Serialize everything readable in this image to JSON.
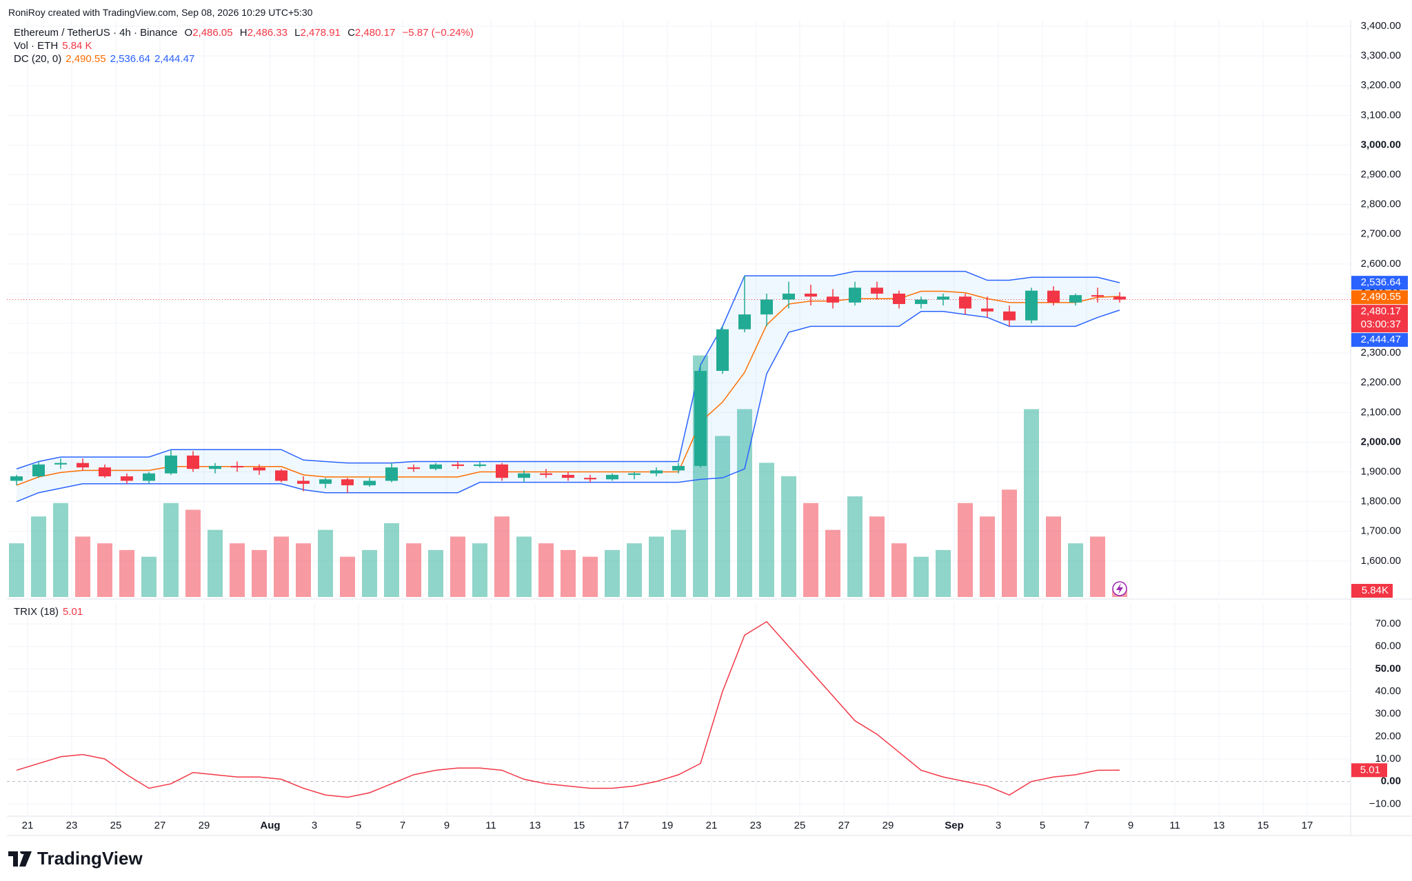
{
  "header": {
    "credit": "RoniRoy created with TradingView.com, Sep 08, 2026 10:29 UTC+5:30",
    "brand": "TradingView"
  },
  "chart_data": {
    "type": "candlestick",
    "legend": {
      "symbol": "Ethereum / TetherUS · 4h · Binance",
      "ohlc": [
        {
          "key": "O",
          "value": {
            "value": 2486.05,
            "label": "2,486.05"
          }
        },
        {
          "key": "H",
          "value": {
            "value": 2486.33,
            "label": "2,486.33"
          }
        },
        {
          "key": "L",
          "value": {
            "value": 2478.91,
            "label": "2,478.91"
          }
        },
        {
          "key": "C",
          "value": {
            "value": 2480.17,
            "label": "2,480.17"
          }
        }
      ],
      "change": "−5.87 (−0.24%)"
    },
    "categories": [
      "Jul 20",
      "Jul 21",
      "Jul 22",
      "Jul 23",
      "Jul 24",
      "Jul 25",
      "Jul 26",
      "Jul 27",
      "Jul 28",
      "Jul 29",
      "Jul 30",
      "Jul 31",
      "Aug 1",
      "Aug 2",
      "Aug 3",
      "Aug 4",
      "Aug 5",
      "Aug 6",
      "Aug 7",
      "Aug 8",
      "Aug 9",
      "Aug 10",
      "Aug 11",
      "Aug 12",
      "Aug 13",
      "Aug 14",
      "Aug 15",
      "Aug 16",
      "Aug 17",
      "Aug 18",
      "Aug 19",
      "Aug 20",
      "Aug 21",
      "Aug 22",
      "Aug 23",
      "Aug 24",
      "Aug 25",
      "Aug 26",
      "Aug 27",
      "Aug 28",
      "Aug 29",
      "Aug 30",
      "Aug 31",
      "Sep 1",
      "Sep 2",
      "Sep 3",
      "Sep 4",
      "Sep 5",
      "Sep 6",
      "Sep 7",
      "Sep 8"
    ],
    "open": [
      1870,
      1885,
      1925,
      1930,
      1915,
      1885,
      1870,
      1895,
      1955,
      1910,
      1920,
      1915,
      1905,
      1870,
      1860,
      1875,
      1855,
      1870,
      1915,
      1910,
      1925,
      1920,
      1925,
      1880,
      1895,
      1890,
      1880,
      1875,
      1890,
      1895,
      1905,
      1920,
      2240,
      2380,
      2430,
      2480,
      2500,
      2490,
      2470,
      2520,
      2500,
      2465,
      2480,
      2490,
      2450,
      2440,
      2410,
      2510,
      2470,
      2495,
      2490
    ],
    "high": [
      1890,
      1935,
      1945,
      1945,
      1925,
      1895,
      1900,
      1975,
      1970,
      1930,
      1935,
      1925,
      1910,
      1885,
      1880,
      1880,
      1880,
      1930,
      1925,
      1930,
      1935,
      1935,
      1930,
      1905,
      1910,
      1900,
      1890,
      1895,
      1900,
      1915,
      1930,
      2260,
      2390,
      2560,
      2500,
      2540,
      2530,
      2515,
      2540,
      2540,
      2510,
      2490,
      2500,
      2500,
      2490,
      2460,
      2520,
      2525,
      2500,
      2520,
      2505
    ],
    "low": [
      1855,
      1880,
      1910,
      1905,
      1880,
      1860,
      1860,
      1890,
      1900,
      1895,
      1900,
      1890,
      1865,
      1835,
      1845,
      1830,
      1850,
      1865,
      1900,
      1905,
      1910,
      1915,
      1870,
      1865,
      1880,
      1870,
      1865,
      1870,
      1875,
      1885,
      1895,
      1915,
      2230,
      2370,
      2390,
      2450,
      2460,
      2450,
      2460,
      2480,
      2450,
      2450,
      2460,
      2430,
      2420,
      2390,
      2400,
      2460,
      2460,
      2470,
      2470
    ],
    "close": [
      1885,
      1925,
      1930,
      1915,
      1885,
      1870,
      1895,
      1955,
      1910,
      1920,
      1915,
      1905,
      1870,
      1860,
      1875,
      1855,
      1870,
      1915,
      1910,
      1925,
      1920,
      1925,
      1880,
      1895,
      1890,
      1880,
      1875,
      1890,
      1895,
      1905,
      1920,
      2240,
      2380,
      2430,
      2480,
      2500,
      2490,
      2470,
      2520,
      2500,
      2465,
      2480,
      2490,
      2450,
      2440,
      2410,
      2510,
      2470,
      2495,
      2490,
      2480.17
    ],
    "up_color": "#22ab94",
    "down_color": "#f23645",
    "ylim": [
      1479,
      3421
    ],
    "yticks": [
      {
        "value": 1600,
        "label": "1,600.00"
      },
      {
        "value": 1700,
        "label": "1,700.00"
      },
      {
        "value": 1800,
        "label": "1,800.00"
      },
      {
        "value": 1900,
        "label": "1,900.00"
      },
      {
        "value": 2000,
        "label": "2,000.00"
      },
      {
        "value": 2100,
        "label": "2,100.00"
      },
      {
        "value": 2200,
        "label": "2,200.00"
      },
      {
        "value": 2300,
        "label": "2,300.00"
      },
      {
        "value": 2400,
        "label": "2,400.00"
      },
      {
        "value": 2500,
        "label": "2,500.00"
      },
      {
        "value": 2600,
        "label": "2,600.00"
      },
      {
        "value": 2700,
        "label": "2,700.00"
      },
      {
        "value": 2800,
        "label": "2,800.00"
      },
      {
        "value": 2900,
        "label": "2,900.00"
      },
      {
        "value": 3000,
        "label": "3,000.00"
      },
      {
        "value": 3100,
        "label": "3,100.00"
      },
      {
        "value": 3200,
        "label": "3,200.00"
      },
      {
        "value": 3300,
        "label": "3,300.00"
      },
      {
        "value": 3400,
        "label": "3,400.00"
      }
    ],
    "xticks": [
      {
        "value": 1,
        "label": "21"
      },
      {
        "value": 3,
        "label": "23"
      },
      {
        "value": 5,
        "label": "25"
      },
      {
        "value": 7,
        "label": "27"
      },
      {
        "value": 9,
        "label": "29"
      },
      {
        "value": 12,
        "label": "Aug"
      },
      {
        "value": 14,
        "label": "3"
      },
      {
        "value": 16,
        "label": "5"
      },
      {
        "value": 18,
        "label": "7"
      },
      {
        "value": 20,
        "label": "9"
      },
      {
        "value": 22,
        "label": "11"
      },
      {
        "value": 24,
        "label": "13"
      },
      {
        "value": 26,
        "label": "15"
      },
      {
        "value": 28,
        "label": "17"
      },
      {
        "value": 30,
        "label": "19"
      },
      {
        "value": 32,
        "label": "21"
      },
      {
        "value": 34,
        "label": "23"
      },
      {
        "value": 36,
        "label": "25"
      },
      {
        "value": 38,
        "label": "27"
      },
      {
        "value": 40,
        "label": "29"
      },
      {
        "value": 43,
        "label": "Sep"
      },
      {
        "value": 45,
        "label": "3"
      },
      {
        "value": 47,
        "label": "5"
      },
      {
        "value": 49,
        "label": "7"
      },
      {
        "value": 51,
        "label": "9"
      },
      {
        "value": 53,
        "label": "11"
      },
      {
        "value": 55,
        "label": "13"
      },
      {
        "value": 57,
        "label": "15"
      },
      {
        "value": 59,
        "label": "17"
      }
    ],
    "grid": true,
    "current_price": {
      "value": 2480.17,
      "label": "2,480.17",
      "countdown": "03:00:37",
      "color": "#f23645"
    },
    "volume": {
      "name": "Vol · ETH",
      "vlim": [
        0,
        430
      ],
      "values": [
        40,
        60,
        70,
        45,
        40,
        35,
        30,
        70,
        65,
        50,
        40,
        35,
        45,
        40,
        50,
        30,
        35,
        55,
        40,
        35,
        45,
        40,
        60,
        45,
        40,
        35,
        30,
        35,
        40,
        45,
        50,
        180,
        120,
        140,
        100,
        90,
        70,
        50,
        75,
        60,
        40,
        30,
        35,
        70,
        60,
        80,
        140,
        60,
        40,
        45,
        5.84
      ],
      "legend_value": {
        "value": 5.84,
        "label": "5.84 K"
      },
      "axis_label": {
        "value": 5.84,
        "label": "5.84K"
      },
      "color": "#f23645"
    },
    "dc": {
      "name": "DC (20, 0)",
      "upper_color": "#2962ff",
      "basis_color": "#ff6d00",
      "upper": [
        1910,
        1935,
        1950,
        1950,
        1950,
        1950,
        1950,
        1975,
        1975,
        1975,
        1975,
        1975,
        1975,
        1940,
        1935,
        1930,
        1930,
        1930,
        1935,
        1935,
        1935,
        1935,
        1935,
        1935,
        1935,
        1935,
        1935,
        1935,
        1935,
        1935,
        1935,
        2260,
        2390,
        2560,
        2560,
        2560,
        2560,
        2560,
        2575,
        2575,
        2575,
        2575,
        2575,
        2575,
        2545,
        2545,
        2555,
        2555,
        2555,
        2555,
        2536.64
      ],
      "basis": [
        1855,
        1883,
        1898,
        1905,
        1905,
        1905,
        1905,
        1918,
        1918,
        1918,
        1918,
        1918,
        1918,
        1890,
        1883,
        1883,
        1883,
        1883,
        1883,
        1883,
        1883,
        1900,
        1900,
        1900,
        1900,
        1900,
        1900,
        1900,
        1900,
        1900,
        1900,
        2068,
        2135,
        2235,
        2395,
        2465,
        2475,
        2475,
        2483,
        2483,
        2483,
        2508,
        2508,
        2503,
        2483,
        2470,
        2470,
        2470,
        2470,
        2488,
        2490.55
      ],
      "lower": [
        1800,
        1830,
        1845,
        1860,
        1860,
        1860,
        1860,
        1860,
        1860,
        1860,
        1860,
        1860,
        1860,
        1840,
        1830,
        1830,
        1830,
        1830,
        1830,
        1830,
        1830,
        1865,
        1865,
        1865,
        1865,
        1865,
        1865,
        1865,
        1865,
        1865,
        1865,
        1875,
        1880,
        1910,
        2230,
        2370,
        2390,
        2390,
        2390,
        2390,
        2390,
        2440,
        2440,
        2430,
        2420,
        2390,
        2390,
        2390,
        2390,
        2420,
        2444.47
      ],
      "last_labels": [
        {
          "value": 2490.55,
          "label": "2,490.55",
          "color": "#ff6d00"
        },
        {
          "value": 2536.64,
          "label": "2,536.64",
          "color": "#2962ff"
        },
        {
          "value": 2444.47,
          "label": "2,444.47",
          "color": "#2962ff"
        }
      ]
    },
    "trix": {
      "name": "TRIX (18)",
      "color": "#f23645",
      "tlim": [
        -14.8,
        79.2
      ],
      "values": [
        5,
        8,
        11,
        12,
        10,
        3,
        -3,
        -1,
        4,
        3,
        2,
        2,
        1,
        -3,
        -6,
        -7,
        -5,
        -1,
        3,
        5,
        6,
        6,
        5,
        1,
        -1,
        -2,
        -3,
        -3,
        -2,
        0,
        3,
        8,
        40,
        65,
        71,
        60,
        49,
        38,
        27,
        21,
        13,
        5,
        2,
        0,
        -2,
        -6,
        0,
        2,
        3,
        5,
        5.01
      ],
      "last_label": {
        "value": 5.01,
        "label": "5.01"
      },
      "ticks": [
        {
          "value": -10,
          "label": "−10.00"
        },
        {
          "value": 0,
          "label": "0.00"
        },
        {
          "value": 10,
          "label": "10.00"
        },
        {
          "value": 20,
          "label": "20.00"
        },
        {
          "value": 30,
          "label": "30.00"
        },
        {
          "value": 40,
          "label": "40.00"
        },
        {
          "value": 50,
          "label": "50.00"
        },
        {
          "value": 60,
          "label": "60.00"
        },
        {
          "value": 70,
          "label": "70.00"
        }
      ]
    }
  }
}
